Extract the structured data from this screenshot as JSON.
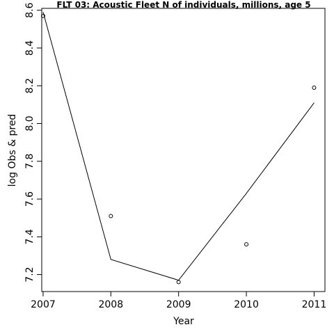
{
  "chart_data": {
    "type": "line",
    "title": "FLT 03: Acoustic Fleet  N of individuals, millions, age 5",
    "xlabel": "Year",
    "ylabel": "log Obs & pred",
    "x": [
      2007,
      2008,
      2009,
      2010,
      2011
    ],
    "x_ticks": [
      "2007",
      "2008",
      "2009",
      "2010",
      "2011"
    ],
    "y_ticks": [
      "7.2",
      "7.4",
      "7.6",
      "7.8",
      "8.0",
      "8.2",
      "8.4",
      "8.6"
    ],
    "xlim": [
      2006.98,
      2011.16
    ],
    "ylim": [
      7.11,
      8.61
    ],
    "series": [
      {
        "name": "",
        "kind": "points",
        "values": [
          8.57,
          7.51,
          7.16,
          7.36,
          8.19
        ]
      },
      {
        "name": "",
        "kind": "line",
        "values": [
          8.59,
          7.28,
          7.17,
          7.63,
          8.11
        ]
      }
    ],
    "grid": false,
    "legend": false
  }
}
